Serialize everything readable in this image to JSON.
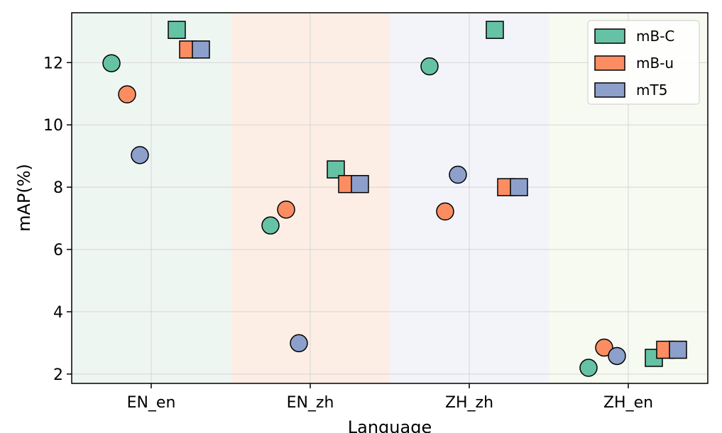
{
  "chart_data": {
    "type": "scatter",
    "title": "",
    "xlabel": "Language",
    "ylabel": "mAP(%)",
    "categories": [
      "EN_en",
      "EN_zh",
      "ZH_zh",
      "ZH_en"
    ],
    "ylim": [
      1.7,
      13.6
    ],
    "yticks": [
      2,
      4,
      6,
      8,
      10,
      12
    ],
    "grid": true,
    "legend_position": "top-right",
    "category_band_colors": [
      "#eef6f2",
      "#fdeee5",
      "#f3f4f9",
      "#f7faf0"
    ],
    "series": [
      {
        "name": "mB-C",
        "color": "#66c2a5",
        "circle_values": [
          11.98,
          6.77,
          11.88,
          2.2
        ],
        "square_values": [
          13.05,
          8.57,
          13.05,
          2.52
        ]
      },
      {
        "name": "mB-u",
        "color": "#fc8d62",
        "circle_values": [
          10.98,
          7.28,
          7.22,
          2.85
        ],
        "square_values": [
          12.42,
          8.1,
          8.0,
          2.78
        ]
      },
      {
        "name": "mT5",
        "color": "#8da0cb",
        "circle_values": [
          9.03,
          2.99,
          8.4,
          2.58
        ],
        "square_values": [
          12.42,
          8.1,
          8.0,
          2.78
        ]
      }
    ]
  }
}
